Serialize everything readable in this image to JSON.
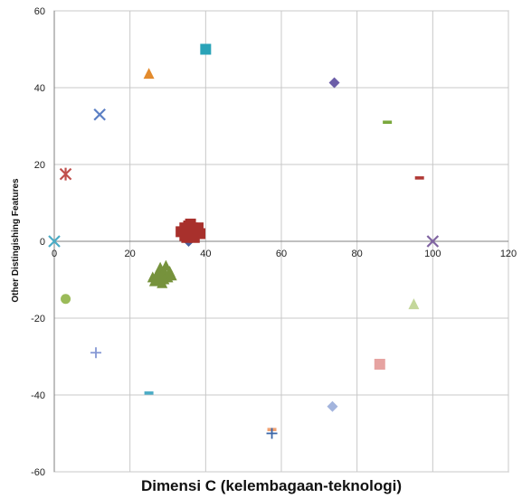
{
  "chart_data": {
    "type": "scatter",
    "xlabel": "Dimensi C (kelembagaan-teknologi)",
    "ylabel": "Other Distingishing Features",
    "xlim": [
      0,
      120
    ],
    "ylim": [
      -60,
      60
    ],
    "x_ticks": [
      0,
      20,
      40,
      60,
      80,
      100,
      120
    ],
    "y_ticks": [
      -60,
      -40,
      -20,
      0,
      20,
      40,
      60
    ],
    "grid": true,
    "legend": "none",
    "series": [
      {
        "marker": "diamond",
        "color": "#6c5ea8",
        "points": [
          [
            74,
            41.3
          ]
        ]
      },
      {
        "marker": "square",
        "color": "#2aa3b8",
        "points": [
          [
            40,
            50
          ]
        ]
      },
      {
        "marker": "triangle",
        "color": "#e38b2d",
        "points": [
          [
            25,
            43.5
          ]
        ]
      },
      {
        "marker": "x",
        "color": "#5b7fc4",
        "points": [
          [
            12,
            33
          ]
        ]
      },
      {
        "marker": "dash",
        "color": "#7aa83c",
        "points": [
          [
            88,
            31
          ]
        ]
      },
      {
        "marker": "asterisk",
        "color": "#c0504d",
        "points": [
          [
            3,
            17.5
          ]
        ]
      },
      {
        "marker": "dash",
        "color": "#b03a36",
        "points": [
          [
            96.5,
            16.5
          ]
        ]
      },
      {
        "marker": "x",
        "color": "#8064a2",
        "points": [
          [
            100,
            0
          ]
        ]
      },
      {
        "marker": "x",
        "color": "#4bacc6",
        "points": [
          [
            0,
            0
          ]
        ]
      },
      {
        "marker": "circle",
        "color": "#9bbb59",
        "points": [
          [
            3,
            -15
          ]
        ]
      },
      {
        "marker": "triangle",
        "color": "#c4d79b",
        "points": [
          [
            95,
            -16.5
          ]
        ]
      },
      {
        "marker": "plus",
        "color": "#8497d4",
        "points": [
          [
            11,
            -29
          ]
        ]
      },
      {
        "marker": "square",
        "color": "#e6a3a1",
        "points": [
          [
            86,
            -32
          ]
        ]
      },
      {
        "marker": "dash",
        "color": "#4bacc6",
        "points": [
          [
            25,
            -39.5
          ]
        ]
      },
      {
        "marker": "diamond",
        "color": "#a3b4dd",
        "points": [
          [
            73.5,
            -43
          ]
        ]
      },
      {
        "marker": "dash",
        "color": "#f0a070",
        "points": [
          [
            57.5,
            -49
          ]
        ]
      },
      {
        "marker": "plus",
        "color": "#3a66a8",
        "points": [
          [
            57.5,
            -50
          ]
        ]
      },
      {
        "marker": "diamond",
        "color": "#4a5e9a",
        "points": [
          [
            35.5,
            0
          ]
        ]
      },
      {
        "marker": "square",
        "color": "#a8302c",
        "points": [
          [
            34.5,
            3.5
          ],
          [
            35.5,
            4
          ],
          [
            36.5,
            3.5
          ],
          [
            37.5,
            2.5
          ],
          [
            36,
            2
          ],
          [
            34.5,
            1.5
          ],
          [
            33.5,
            2.5
          ],
          [
            38.5,
            2
          ],
          [
            37,
            1
          ],
          [
            35,
            1
          ],
          [
            36,
            4.5
          ],
          [
            38,
            3.5
          ]
        ]
      },
      {
        "marker": "triangle",
        "color": "#76923c",
        "points": [
          [
            28,
            -7
          ],
          [
            29,
            -8
          ],
          [
            27,
            -9
          ],
          [
            30,
            -9.5
          ],
          [
            29,
            -10
          ],
          [
            28,
            -10
          ],
          [
            26,
            -9.5
          ],
          [
            30.5,
            -8
          ],
          [
            29.5,
            -6.5
          ],
          [
            27.5,
            -8.5
          ],
          [
            31,
            -9
          ],
          [
            28.5,
            -11
          ],
          [
            26.5,
            -10.5
          ]
        ]
      }
    ]
  }
}
